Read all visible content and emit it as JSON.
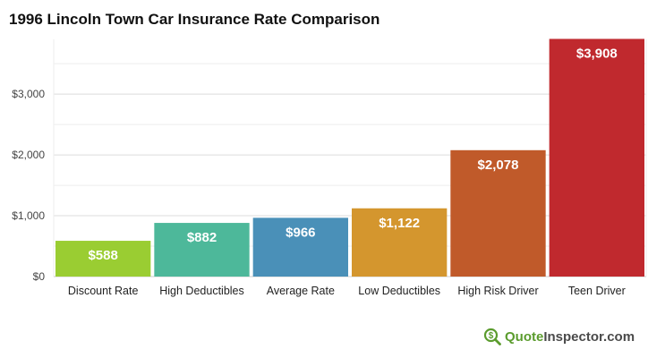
{
  "chart_data": {
    "type": "bar",
    "title": "1996 Lincoln Town Car Insurance Rate Comparison",
    "xlabel": "",
    "ylabel": "",
    "categories": [
      "Discount Rate",
      "High Deductibles",
      "Average Rate",
      "Low Deductibles",
      "High Risk Driver",
      "Teen Driver"
    ],
    "values": [
      588,
      882,
      966,
      1122,
      2078,
      3908
    ],
    "data_labels": [
      "$588",
      "$882",
      "$966",
      "$1,122",
      "$2,078",
      "$3,908"
    ],
    "colors": [
      "#9acd32",
      "#4db89a",
      "#4a90b8",
      "#d4962e",
      "#c05a2a",
      "#c0292e"
    ],
    "ylim": [
      0,
      3900
    ],
    "yticks": [
      0,
      1000,
      2000,
      3000
    ],
    "ytick_labels": [
      "$0",
      "$1,000",
      "$2,000",
      "$3,000"
    ],
    "grid": true,
    "legend": "none"
  },
  "brand": {
    "part1": "Quote",
    "part2": "Inspector.com",
    "icon": "magnifier-dollar-icon"
  }
}
